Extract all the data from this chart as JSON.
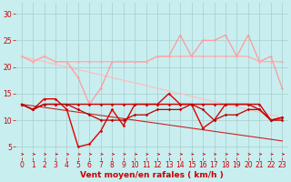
{
  "x": [
    0,
    1,
    2,
    3,
    4,
    5,
    6,
    7,
    8,
    9,
    10,
    11,
    12,
    13,
    14,
    15,
    16,
    17,
    18,
    19,
    20,
    21,
    22,
    23
  ],
  "background_color": "#c8eef0",
  "grid_color": "#aacccc",
  "xlabel": "Vent moyen/en rafales ( km/h )",
  "tick_color": "#cc0000",
  "xlabel_color": "#cc0000",
  "series": [
    {
      "name": "rafales_high",
      "color": "#ff9999",
      "lw": 0.9,
      "marker": "D",
      "markersize": 1.5,
      "values": [
        22,
        21,
        22,
        21,
        21,
        18,
        13,
        16,
        21,
        21,
        21,
        21,
        22,
        22,
        26,
        22,
        25,
        25,
        26,
        22,
        26,
        21,
        22,
        16
      ]
    },
    {
      "name": "rafales_mean_upper",
      "color": "#ffaaaa",
      "lw": 0.9,
      "marker": "D",
      "markersize": 1.5,
      "values": [
        22,
        21,
        22,
        21,
        21,
        21,
        21,
        21,
        21,
        21,
        21,
        21,
        22,
        22,
        22,
        22,
        22,
        22,
        22,
        22,
        22,
        21,
        21,
        21
      ]
    },
    {
      "name": "rafales_diagonal",
      "color": "#ffbbbb",
      "lw": 0.8,
      "marker": null,
      "markersize": 0,
      "values": [
        22,
        21.5,
        21,
        20.5,
        20,
        19.5,
        19,
        18.5,
        18,
        17.5,
        17,
        16.5,
        16,
        15.5,
        15,
        14.5,
        14,
        13.5,
        13,
        12.5,
        12,
        11.5,
        11,
        10.5
      ]
    },
    {
      "name": "vent_high",
      "color": "#dd0000",
      "lw": 1.0,
      "marker": "D",
      "markersize": 1.8,
      "values": [
        13,
        12,
        14,
        14,
        12,
        5,
        5.5,
        8,
        12,
        9,
        13,
        13,
        13,
        15,
        13,
        13,
        8.5,
        10,
        13,
        13,
        13,
        12,
        10,
        10.5
      ]
    },
    {
      "name": "vent_mean_flat",
      "color": "#cc0000",
      "lw": 1.0,
      "marker": "D",
      "markersize": 1.8,
      "values": [
        13,
        12,
        13,
        13,
        13,
        13,
        13,
        13,
        13,
        13,
        13,
        13,
        13,
        13,
        13,
        13,
        13,
        13,
        13,
        13,
        13,
        13,
        10,
        10
      ]
    },
    {
      "name": "vent_medium",
      "color": "#bb0000",
      "lw": 0.9,
      "marker": "D",
      "markersize": 1.8,
      "values": [
        13,
        12,
        13,
        13,
        13,
        12,
        11,
        10,
        10,
        10,
        11,
        11,
        12,
        12,
        12,
        13,
        12,
        10,
        11,
        11,
        12,
        12,
        10,
        10.5
      ]
    },
    {
      "name": "vent_diagonal",
      "color": "#cc2222",
      "lw": 0.8,
      "marker": null,
      "markersize": 0,
      "values": [
        13,
        12.7,
        12.4,
        12.1,
        11.8,
        11.5,
        11.2,
        10.9,
        10.6,
        10.3,
        10,
        9.7,
        9.4,
        9.1,
        8.8,
        8.5,
        8.2,
        7.9,
        7.6,
        7.3,
        7,
        6.7,
        6.4,
        6.1
      ]
    }
  ],
  "ylim": [
    3,
    32
  ],
  "yticks": [
    5,
    10,
    15,
    20,
    25,
    30
  ],
  "xlim": [
    -0.5,
    23.5
  ],
  "tick_fontsize": 5.5,
  "xlabel_fontsize": 6.5
}
